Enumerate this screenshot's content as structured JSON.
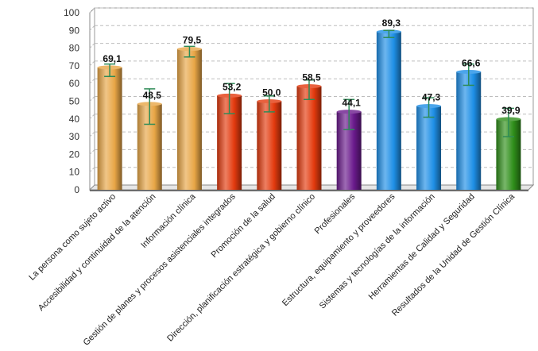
{
  "chart_data": {
    "type": "bar",
    "title": "",
    "xlabel": "",
    "ylabel": "",
    "ylim": [
      0,
      100
    ],
    "yticks": [
      0,
      10,
      20,
      30,
      40,
      50,
      60,
      70,
      80,
      90,
      100
    ],
    "grid": true,
    "categories": [
      "La persona como sujeto activo",
      "Accesibilidad y continuidad de la atención",
      "Información clínica",
      "Gestión de planes y procesos asistenciales integrados",
      "Promoción de la salud",
      "Dirección, planificación estratégica y gobierno clínico",
      "Profesionales",
      "Estructura, equipamiento y proveedores",
      "Sistemas y tecnologías de la información",
      "Herramientas de Calidad y Seguridad",
      "Resultados de la Unidad de Gestión Clínica"
    ],
    "values": [
      69.1,
      48.5,
      79.5,
      53.2,
      50.0,
      58.5,
      44.1,
      89.3,
      47.3,
      66.6,
      39.9
    ],
    "value_labels": [
      "69,1",
      "48,5",
      "79,5",
      "53,2",
      "50,0",
      "58,5",
      "44,1",
      "89,3",
      "47,3",
      "66,6",
      "39,9"
    ],
    "error_low": [
      64,
      37,
      75,
      43,
      44,
      51,
      34,
      86,
      41,
      59,
      30
    ],
    "error_high": [
      71,
      57,
      81,
      60,
      53,
      62,
      51,
      90,
      52,
      71,
      46
    ],
    "bar_colors": [
      "#e8a646",
      "#e8a646",
      "#e8a646",
      "#e33a0e",
      "#e33a0e",
      "#e33a0e",
      "#6a1a8c",
      "#1e8fe6",
      "#1e8fe6",
      "#1e8fe6",
      "#2f8f1a"
    ],
    "error_color": "#2e8b57"
  }
}
